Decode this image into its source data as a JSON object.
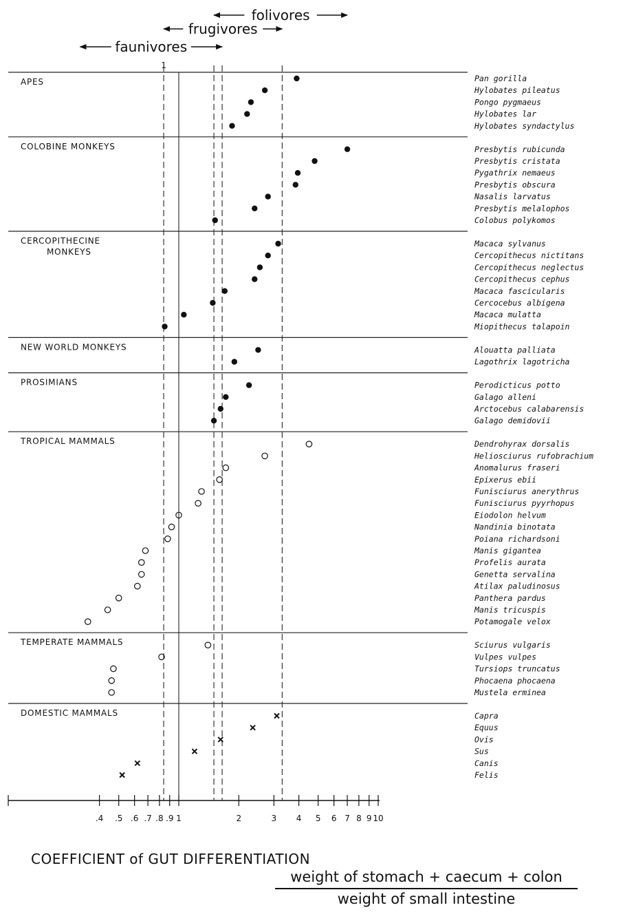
{
  "chart_data": {
    "type": "scatter",
    "x_scale": "log",
    "xlim": [
      0.3,
      10
    ],
    "x_ticks": [
      {
        "v": 0.4,
        "t": ".4"
      },
      {
        "v": 0.5,
        "t": ".5"
      },
      {
        "v": 0.6,
        "t": ".6"
      },
      {
        "v": 0.7,
        "t": ".7"
      },
      {
        "v": 0.8,
        "t": ".8"
      },
      {
        "v": 0.9,
        "t": ".9"
      },
      {
        "v": 1,
        "t": "1"
      },
      {
        "v": 2,
        "t": "2"
      },
      {
        "v": 3,
        "t": "3"
      },
      {
        "v": 4,
        "t": "4"
      },
      {
        "v": 5,
        "t": "5"
      },
      {
        "v": 6,
        "t": "6"
      },
      {
        "v": 7,
        "t": "7"
      },
      {
        "v": 8,
        "t": "8"
      },
      {
        "v": 9,
        "t": "9"
      },
      {
        "v": 10,
        "t": "10"
      }
    ],
    "top_one_label": "1",
    "dashed_lines": [
      0.84,
      1.5,
      1.65,
      3.3
    ],
    "solid_line": 1,
    "ranges": [
      {
        "name": "folivores",
        "from": 1.5,
        "to": 7.0
      },
      {
        "name": "frugivores",
        "from": 0.84,
        "to": 3.3
      },
      {
        "name": "faunivores",
        "from": 0.32,
        "to": 1.65
      }
    ],
    "groups": [
      {
        "label_lines": [
          "APES"
        ],
        "marker": "filled",
        "points": [
          {
            "species": "Pan gorilla",
            "x": 3.9
          },
          {
            "species": "Hylobates pileatus",
            "x": 2.7
          },
          {
            "species": "Pongo pygmaeus",
            "x": 2.3
          },
          {
            "species": "Hylobates lar",
            "x": 2.2
          },
          {
            "species": "Hylobates syndactylus",
            "x": 1.85
          }
        ]
      },
      {
        "label_lines": [
          "COLOBINE MONKEYS"
        ],
        "marker": "filled",
        "points": [
          {
            "species": "Presbytis rubicunda",
            "x": 7.0
          },
          {
            "species": "Presbytis cristata",
            "x": 4.8
          },
          {
            "species": "Pygathrix nemaeus",
            "x": 3.95
          },
          {
            "species": "Presbytis obscura",
            "x": 3.85
          },
          {
            "species": "Nasalis larvatus",
            "x": 2.8
          },
          {
            "species": "Presbytis melalophos",
            "x": 2.4
          },
          {
            "species": "Colobus polykomos",
            "x": 1.52
          }
        ]
      },
      {
        "label_lines": [
          "CERCOPITHECINE",
          "MONKEYS"
        ],
        "marker": "filled",
        "points": [
          {
            "species": "Macaca sylvanus",
            "x": 3.15
          },
          {
            "species": "Cercopithecus nictitans",
            "x": 2.8
          },
          {
            "species": "Cercopithecus neglectus",
            "x": 2.55
          },
          {
            "species": "Cercopithecus cephus",
            "x": 2.4
          },
          {
            "species": "Macaca fascicularis",
            "x": 1.7
          },
          {
            "species": "Cercocebus albigena",
            "x": 1.48
          },
          {
            "species": "Macaca mulatta",
            "x": 1.06
          },
          {
            "species": "Miopithecus talapoin",
            "x": 0.85
          }
        ]
      },
      {
        "label_lines": [
          "NEW WORLD MONKEYS"
        ],
        "marker": "filled",
        "points": [
          {
            "species": "Alouatta palliata",
            "x": 2.5
          },
          {
            "species": "Lagothrix lagotricha",
            "x": 1.9
          }
        ]
      },
      {
        "label_lines": [
          "PROSIMIANS"
        ],
        "marker": "filled",
        "points": [
          {
            "species": "Perodicticus potto",
            "x": 2.25
          },
          {
            "species": "Galago alleni",
            "x": 1.72
          },
          {
            "species": "Arctocebus calabarensis",
            "x": 1.62
          },
          {
            "species": "Galago demidovii",
            "x": 1.5
          }
        ]
      },
      {
        "label_lines": [
          "TROPICAL MAMMALS"
        ],
        "marker": "open",
        "points": [
          {
            "species": "Dendrohyrax dorsalis",
            "x": 4.5
          },
          {
            "species": "Heliosciurus rufobrachium",
            "x": 2.7
          },
          {
            "species": "Anomalurus fraseri",
            "x": 1.72
          },
          {
            "species": "Epixerus ebii",
            "x": 1.6
          },
          {
            "species": "Funisciurus anerythrus",
            "x": 1.3
          },
          {
            "species": "Funisciurus pyyrhopus",
            "x": 1.25
          },
          {
            "species": "Eiodolon helvum",
            "x": 1.0
          },
          {
            "species": "Nandinia binotata",
            "x": 0.92
          },
          {
            "species": "Poiana richardsoni",
            "x": 0.88
          },
          {
            "species": "Manis gigantea",
            "x": 0.68
          },
          {
            "species": "Profelis aurata",
            "x": 0.65
          },
          {
            "species": "Genetta servalina",
            "x": 0.65
          },
          {
            "species": "Atilax paludinosus",
            "x": 0.62
          },
          {
            "species": "Panthera pardus",
            "x": 0.5
          },
          {
            "species": "Manis tricuspis",
            "x": 0.44
          },
          {
            "species": "Potamogale velox",
            "x": 0.35
          }
        ]
      },
      {
        "label_lines": [
          "TEMPERATE MAMMALS"
        ],
        "marker": "open",
        "points": [
          {
            "species": "Sciurus vulgaris",
            "x": 1.4
          },
          {
            "species": "Vulpes vulpes",
            "x": 0.82
          },
          {
            "species": "Tursiops truncatus",
            "x": 0.47
          },
          {
            "species": "Phocaena phocaena",
            "x": 0.46
          },
          {
            "species": "Mustela erminea",
            "x": 0.46
          }
        ]
      },
      {
        "label_lines": [
          "DOMESTIC MAMMALS"
        ],
        "marker": "cross",
        "points": [
          {
            "species": "Capra",
            "x": 3.1
          },
          {
            "species": "Equus",
            "x": 2.35
          },
          {
            "species": "Ovis",
            "x": 1.62
          },
          {
            "species": "Sus",
            "x": 1.2
          },
          {
            "species": "Canis",
            "x": 0.62
          },
          {
            "species": "Felis",
            "x": 0.52
          }
        ]
      }
    ],
    "xlabel": "COEFFICIENT of GUT DIFFERENTIATION",
    "xlabel_fraction_numerator": "weight of stomach + caecum + colon",
    "xlabel_fraction_denominator": "weight of small intestine"
  }
}
